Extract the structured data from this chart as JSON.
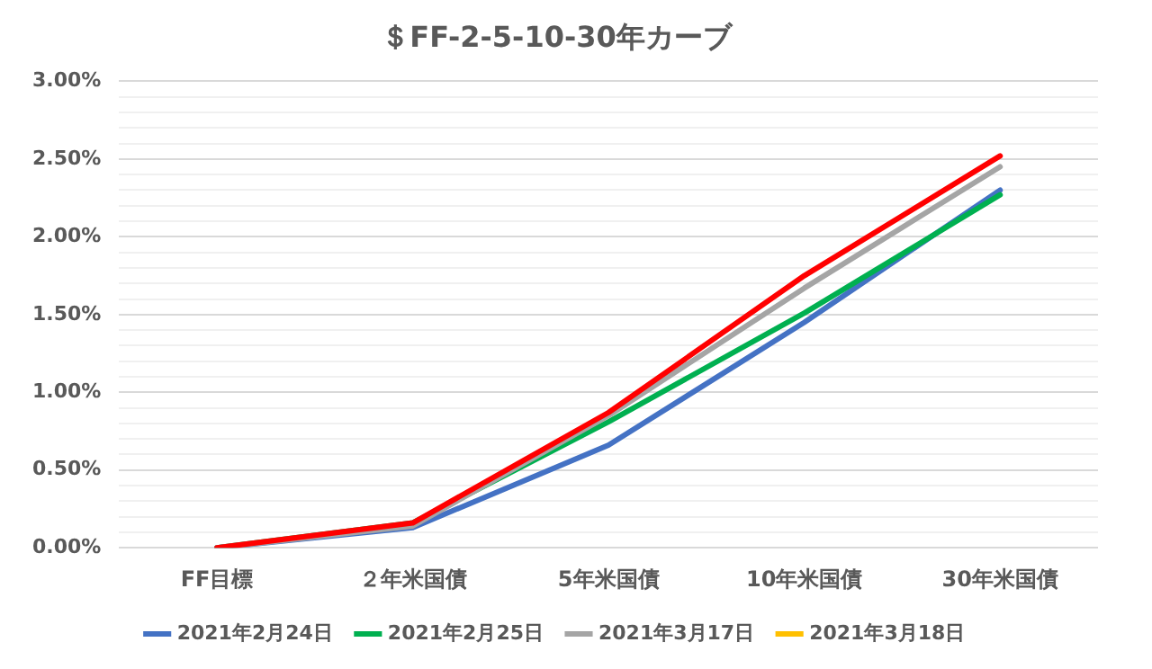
{
  "chart_data": {
    "type": "line",
    "title": "＄FF-2-5-10-30年カーブ",
    "categories": [
      "FF目標",
      "２年米国債",
      "5年米国債",
      "10年米国債",
      "30年米国債"
    ],
    "series": [
      {
        "name": "2021年2月24日",
        "color": "#4472c4",
        "values": [
          0,
          0.13,
          0.66,
          1.45,
          2.3
        ]
      },
      {
        "name": "2021年2月25日",
        "color": "#00b050",
        "values": [
          0,
          0.16,
          0.81,
          1.51,
          2.27
        ]
      },
      {
        "name": "2021年3月17日",
        "color": "#a5a5a5",
        "values": [
          0,
          0.14,
          0.85,
          1.67,
          2.45
        ]
      },
      {
        "name": "2021年3月18日",
        "color": "#ffc000",
        "values": [
          null,
          null,
          null,
          null,
          null
        ]
      },
      {
        "color": "#ff0000",
        "values": [
          0,
          0.16,
          0.87,
          1.75,
          2.52
        ]
      }
    ],
    "ylim": [
      0,
      3
    ],
    "yticks": [
      {
        "value": 0,
        "label": "0.00%"
      },
      {
        "value": 0.1,
        "label": null
      },
      {
        "value": 0.2,
        "label": null
      },
      {
        "value": 0.3,
        "label": null
      },
      {
        "value": 0.4,
        "label": null
      },
      {
        "value": 0.5,
        "label": "0.50%"
      },
      {
        "value": 0.6,
        "label": null
      },
      {
        "value": 0.7,
        "label": null
      },
      {
        "value": 0.8,
        "label": null
      },
      {
        "value": 0.9,
        "label": null
      },
      {
        "value": 1,
        "label": "1.00%"
      },
      {
        "value": 1.1,
        "label": null
      },
      {
        "value": 1.2,
        "label": null
      },
      {
        "value": 1.3,
        "label": null
      },
      {
        "value": 1.4,
        "label": null
      },
      {
        "value": 1.5,
        "label": "1.50%"
      },
      {
        "value": 1.6,
        "label": null
      },
      {
        "value": 1.7,
        "label": null
      },
      {
        "value": 1.8,
        "label": null
      },
      {
        "value": 1.9,
        "label": null
      },
      {
        "value": 2,
        "label": "2.00%"
      },
      {
        "value": 2.1,
        "label": null
      },
      {
        "value": 2.2,
        "label": null
      },
      {
        "value": 2.3,
        "label": null
      },
      {
        "value": 2.4,
        "label": null
      },
      {
        "value": 2.5,
        "label": "2.50%"
      },
      {
        "value": 2.6,
        "label": null
      },
      {
        "value": 2.7,
        "label": null
      },
      {
        "value": 2.8,
        "label": null
      },
      {
        "value": 2.9,
        "label": null
      },
      {
        "value": 3,
        "label": "3.00%"
      }
    ],
    "grid": "y",
    "legend": "bottom",
    "marker": "none",
    "line_style": "solid"
  }
}
